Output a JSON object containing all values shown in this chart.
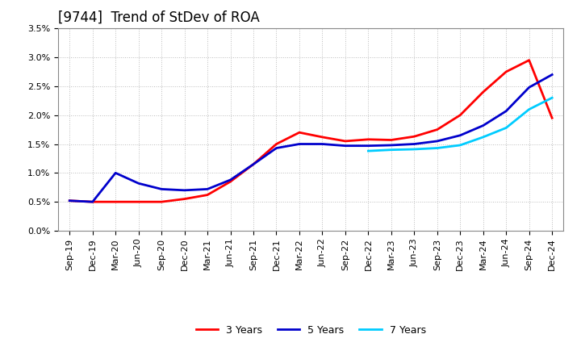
{
  "title": "[9744]  Trend of StDev of ROA",
  "x_labels": [
    "Sep-19",
    "Dec-19",
    "Mar-20",
    "Jun-20",
    "Sep-20",
    "Dec-20",
    "Mar-21",
    "Jun-21",
    "Sep-21",
    "Dec-21",
    "Mar-22",
    "Jun-22",
    "Sep-22",
    "Dec-22",
    "Mar-23",
    "Jun-23",
    "Sep-23",
    "Dec-23",
    "Mar-24",
    "Jun-24",
    "Sep-24",
    "Dec-24"
  ],
  "y_min": 0.0,
  "y_max": 0.035,
  "y_ticks": [
    0.0,
    0.005,
    0.01,
    0.015,
    0.02,
    0.025,
    0.03,
    0.035
  ],
  "y_tick_labels": [
    "0.0%",
    "0.5%",
    "1.0%",
    "1.5%",
    "2.0%",
    "2.5%",
    "3.0%",
    "3.5%"
  ],
  "series": {
    "3 Years": {
      "color": "#ff0000",
      "values": [
        0.0052,
        0.005,
        0.005,
        0.005,
        0.005,
        0.0055,
        0.0062,
        0.0085,
        0.0115,
        0.015,
        0.017,
        0.0162,
        0.0155,
        0.0158,
        0.0157,
        0.0163,
        0.0175,
        0.02,
        0.024,
        0.0275,
        0.0295,
        0.0195
      ]
    },
    "5 Years": {
      "color": "#0000cc",
      "values": [
        0.0052,
        0.005,
        0.01,
        0.0082,
        0.0072,
        0.007,
        0.0072,
        0.0088,
        0.0115,
        0.0143,
        0.015,
        0.015,
        0.0147,
        0.0147,
        0.0148,
        0.015,
        0.0155,
        0.0165,
        0.0182,
        0.0207,
        0.0248,
        0.027
      ]
    },
    "7 Years": {
      "color": "#00ccff",
      "values": [
        null,
        null,
        null,
        null,
        null,
        null,
        null,
        null,
        null,
        null,
        null,
        null,
        null,
        0.0138,
        0.014,
        0.0141,
        0.0143,
        0.0148,
        0.0162,
        0.0178,
        0.021,
        0.023
      ]
    },
    "10 Years": {
      "color": "#00aa00",
      "values": [
        null,
        null,
        null,
        null,
        null,
        null,
        null,
        null,
        null,
        null,
        null,
        null,
        null,
        null,
        null,
        null,
        null,
        null,
        null,
        null,
        null,
        null
      ]
    }
  },
  "background_color": "#ffffff",
  "plot_bg_color": "#ffffff",
  "grid_color": "#bbbbbb",
  "title_fontsize": 12,
  "tick_fontsize": 8,
  "legend_fontsize": 9
}
